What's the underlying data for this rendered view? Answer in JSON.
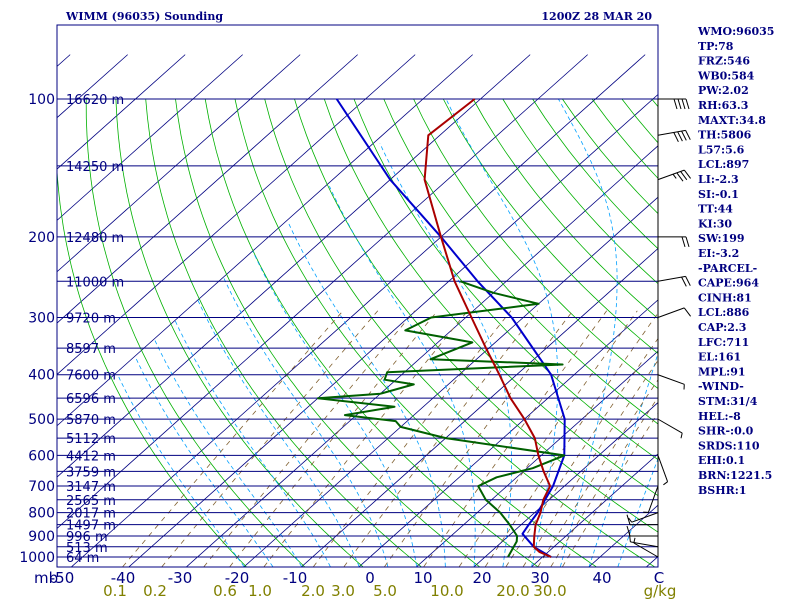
{
  "header": {
    "station": "WIMM (96035) Sounding",
    "time": "1200Z 28 MAR 20"
  },
  "indices": [
    "WMO:96035",
    "TP:78",
    "FRZ:546",
    "WB0:584",
    "PW:2.02",
    "RH:63.3",
    "MAXT:34.8",
    "TH:5806",
    "L57:5.6",
    "LCL:897",
    "LI:-2.3",
    "SI:-0.1",
    "TT:44",
    "KI:30",
    "SW:199",
    "EI:-3.2",
    "-PARCEL-",
    "CAPE:964",
    "CINH:81",
    "LCL:886",
    "CAP:2.3",
    "LFC:711",
    "EL:161",
    "MPL:91",
    "-WIND-",
    "STM:31/4",
    "HEL:-8",
    "SHR-:0.0",
    "SRDS:110",
    "EHI:0.1",
    "BRN:1221.5",
    "BSHR:1"
  ],
  "colors": {
    "isobar": "#000080",
    "isotherm": "#000080",
    "dry_adiabat": "#00b000",
    "moist_adiabat": "#00a0ff",
    "mixing_ratio": "#806030",
    "temperature": "#aa0000",
    "dewpoint": "#006000",
    "parcel": "#0000cc"
  },
  "chart_data": {
    "type": "line",
    "xlabel": "",
    "ylabel": "",
    "pressure_axis": {
      "ticks": [
        1000,
        900,
        800,
        700,
        600,
        500,
        400,
        300,
        200,
        100
      ],
      "ylim": [
        1000,
        100
      ],
      "scale": "log"
    },
    "temperature_axis": {
      "ticks": [
        -50,
        -40,
        -30,
        -20,
        -10,
        0,
        10,
        20,
        30,
        40
      ],
      "unit": "C"
    },
    "mixing_ratio_axis": {
      "ticks": [
        "0.1",
        "0.2",
        "0.6",
        "1.0",
        "2.0",
        "3.0",
        "5.0",
        "10.0",
        "20.0",
        "30.0"
      ],
      "unit": "g/kg"
    },
    "height_labels": [
      {
        "p": 100,
        "label": "16620 m"
      },
      {
        "p": 140,
        "label": "14250 m"
      },
      {
        "p": 200,
        "label": "12480 m"
      },
      {
        "p": 250,
        "label": "11000 m"
      },
      {
        "p": 300,
        "label": "9720 m"
      },
      {
        "p": 350,
        "label": "8597 m"
      },
      {
        "p": 400,
        "label": "7600 m"
      },
      {
        "p": 450,
        "label": "6596 m"
      },
      {
        "p": 500,
        "label": "5870 m"
      },
      {
        "p": 550,
        "label": "5112 m"
      },
      {
        "p": 600,
        "label": "4412 m"
      },
      {
        "p": 650,
        "label": "3759 m"
      },
      {
        "p": 700,
        "label": "3147 m"
      },
      {
        "p": 750,
        "label": "2565 m"
      },
      {
        "p": 800,
        "label": "2017 m"
      },
      {
        "p": 850,
        "label": "1497 m"
      },
      {
        "p": 900,
        "label": "996 m"
      },
      {
        "p": 950,
        "label": "513 m"
      },
      {
        "p": 1000,
        "label": "64 m"
      }
    ],
    "series": [
      {
        "key": "temperature",
        "points": [
          [
            1000,
            31.5
          ],
          [
            975,
            28.5
          ],
          [
            950,
            26.5
          ],
          [
            925,
            25.5
          ],
          [
            900,
            24.5
          ],
          [
            850,
            22.5
          ],
          [
            800,
            21.0
          ],
          [
            750,
            19.0
          ],
          [
            700,
            17.5
          ],
          [
            650,
            13.5
          ],
          [
            600,
            9.5
          ],
          [
            550,
            5.5
          ],
          [
            500,
            0.0
          ],
          [
            450,
            -6.5
          ],
          [
            400,
            -13.0
          ],
          [
            350,
            -20.5
          ],
          [
            300,
            -29.0
          ],
          [
            250,
            -39.0
          ],
          [
            200,
            -50.0
          ],
          [
            150,
            -64.0
          ],
          [
            120,
            -72.0
          ],
          [
            100,
            -71.0
          ]
        ]
      },
      {
        "key": "dewpoint",
        "points": [
          [
            1000,
            24.0
          ],
          [
            975,
            23.5
          ],
          [
            950,
            23.0
          ],
          [
            925,
            22.5
          ],
          [
            900,
            21.5
          ],
          [
            850,
            18.0
          ],
          [
            800,
            14.0
          ],
          [
            750,
            9.0
          ],
          [
            700,
            5.0
          ],
          [
            670,
            6.5
          ],
          [
            640,
            11.0
          ],
          [
            600,
            14.0
          ],
          [
            550,
            -10.0
          ],
          [
            520,
            -20.0
          ],
          [
            505,
            -22.0
          ],
          [
            490,
            -32.0
          ],
          [
            470,
            -25.0
          ],
          [
            450,
            -40.0
          ],
          [
            440,
            -30.0
          ],
          [
            420,
            -26.0
          ],
          [
            410,
            -32.0
          ],
          [
            395,
            -33.0
          ],
          [
            380,
            -4.0
          ],
          [
            370,
            -28.0
          ],
          [
            340,
            -24.0
          ],
          [
            320,
            -38.0
          ],
          [
            300,
            -36.0
          ],
          [
            280,
            -20.0
          ],
          [
            265,
            -30.0
          ],
          [
            250,
            -38.0
          ]
        ]
      },
      {
        "key": "parcel",
        "points": [
          [
            1000,
            31.5
          ],
          [
            950,
            26.5
          ],
          [
            890,
            22.0
          ],
          [
            850,
            21.3
          ],
          [
            800,
            20.5
          ],
          [
            700,
            18.0
          ],
          [
            600,
            14.0
          ],
          [
            500,
            7.0
          ],
          [
            400,
            -4.0
          ],
          [
            300,
            -22.0
          ],
          [
            250,
            -35.0
          ],
          [
            200,
            -50.0
          ],
          [
            150,
            -70.0
          ],
          [
            100,
            -95.0
          ]
        ]
      }
    ],
    "wind_barbs": [
      {
        "p": 1000,
        "dir": 300,
        "spd": 5
      },
      {
        "p": 950,
        "dir": 280,
        "spd": 10
      },
      {
        "p": 900,
        "dir": 270,
        "spd": 10
      },
      {
        "p": 850,
        "dir": 270,
        "spd": 10
      },
      {
        "p": 800,
        "dir": 250,
        "spd": 5
      },
      {
        "p": 700,
        "dir": 200,
        "spd": 5
      },
      {
        "p": 600,
        "dir": 160,
        "spd": 5
      },
      {
        "p": 500,
        "dir": 120,
        "spd": 5
      },
      {
        "p": 400,
        "dir": 110,
        "spd": 5
      },
      {
        "p": 300,
        "dir": 70,
        "spd": 10
      },
      {
        "p": 250,
        "dir": 80,
        "spd": 20
      },
      {
        "p": 200,
        "dir": 90,
        "spd": 20
      },
      {
        "p": 150,
        "dir": 70,
        "spd": 35
      },
      {
        "p": 120,
        "dir": 80,
        "spd": 40
      },
      {
        "p": 100,
        "dir": 90,
        "spd": 40
      }
    ]
  }
}
